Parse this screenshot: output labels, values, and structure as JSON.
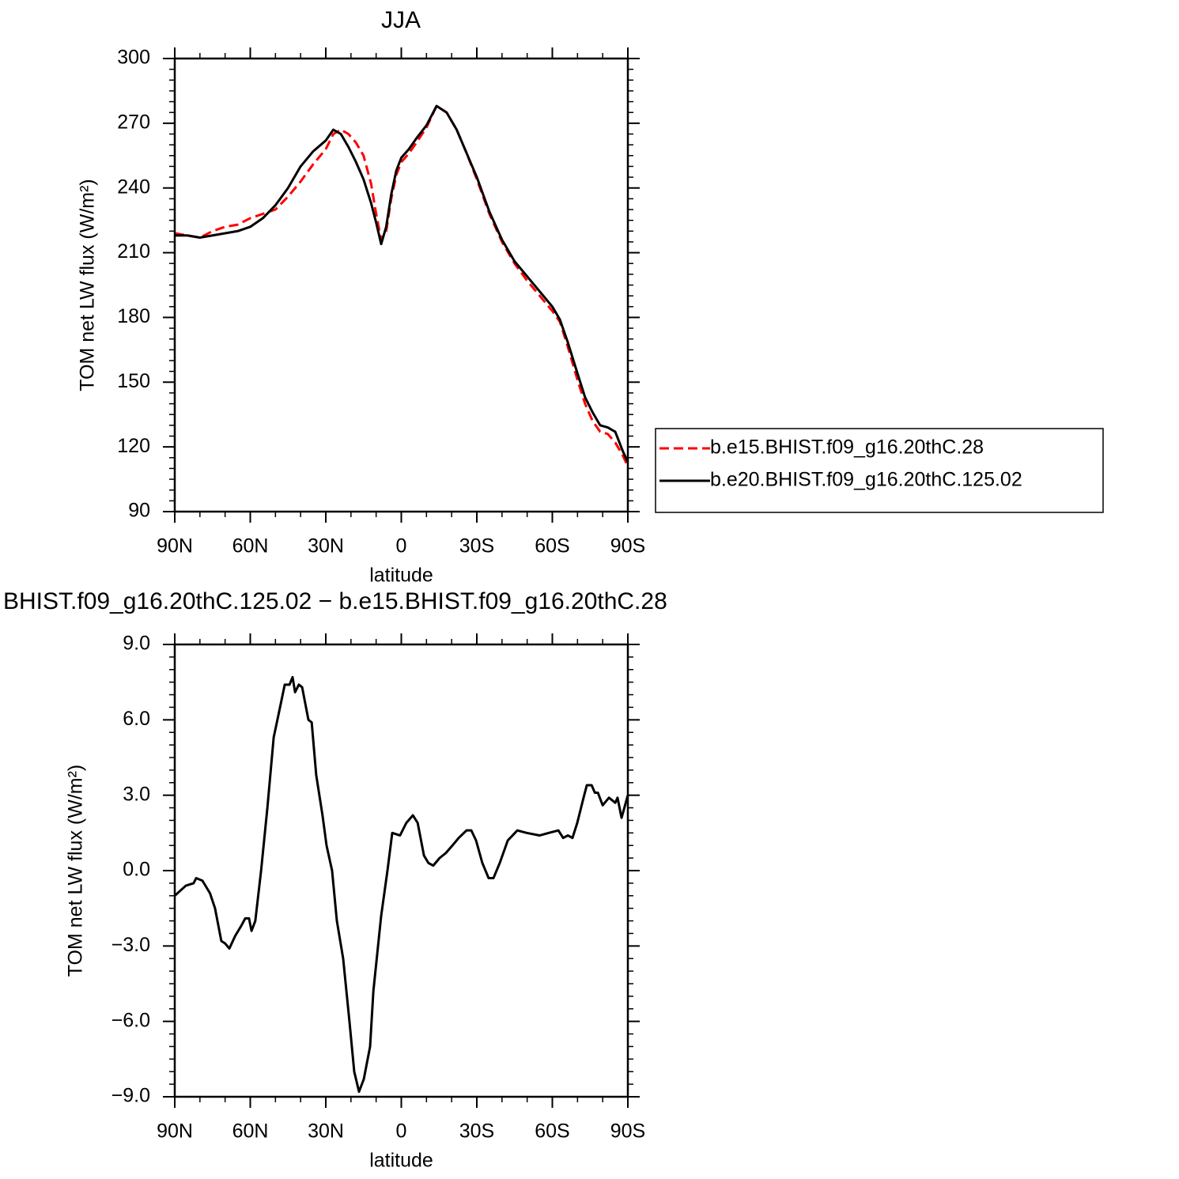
{
  "chart_data": [
    {
      "type": "line",
      "title": "JJA",
      "xlabel": "latitude",
      "ylabel": "TOM net LW flux (W/m²)",
      "x": [
        90,
        85,
        80,
        75,
        70,
        65,
        60,
        55,
        50,
        45,
        40,
        35,
        30,
        27,
        24,
        21,
        18,
        15,
        12,
        10,
        8,
        6,
        4,
        2,
        0,
        -3,
        -6,
        -10,
        -14,
        -18,
        -22,
        -26,
        -30,
        -35,
        -40,
        -45,
        -50,
        -55,
        -60,
        -63,
        -66,
        -70,
        -73,
        -76,
        -79,
        -82,
        -85,
        -88,
        -90
      ],
      "series": [
        {
          "name": "b.e15.BHIST.f09_g16.20thC.28",
          "color": "#ff0000",
          "style": "dashed",
          "values": [
            219,
            218,
            217,
            220,
            222,
            223,
            226,
            228,
            230,
            236,
            243,
            251,
            258,
            265,
            267,
            265,
            261,
            255,
            242,
            228,
            216,
            220,
            235,
            246,
            252,
            256,
            261,
            268,
            278,
            275,
            267,
            256,
            244,
            228,
            215,
            205,
            197,
            190,
            183,
            178,
            167,
            151,
            140,
            132,
            127,
            126,
            122,
            116,
            111
          ]
        },
        {
          "name": "b.e20.BHIST.f09_g16.20thC.125.02",
          "color": "#000000",
          "style": "solid",
          "values": [
            218,
            218,
            217,
            218,
            219,
            220,
            222,
            226,
            232,
            240,
            250,
            257,
            262,
            267,
            265,
            259,
            252,
            244,
            233,
            224,
            214,
            222,
            237,
            248,
            254,
            258,
            263,
            269,
            278,
            275,
            267,
            256,
            245,
            229,
            216,
            206,
            199,
            192,
            185,
            179,
            169,
            154,
            143,
            136,
            130,
            129,
            127,
            118,
            113
          ]
        }
      ],
      "xlim": [
        90,
        -90
      ],
      "xticks": [
        {
          "value": 90,
          "label": "90N"
        },
        {
          "value": 60,
          "label": "60N"
        },
        {
          "value": 30,
          "label": "30N"
        },
        0,
        {
          "value": -30,
          "label": "30S"
        },
        {
          "value": -60,
          "label": "60S"
        },
        {
          "value": -90,
          "label": "90S"
        }
      ],
      "ylim": [
        90,
        300
      ],
      "yticks": [
        90,
        120,
        150,
        180,
        210,
        240,
        270,
        300
      ],
      "legend": "right"
    },
    {
      "type": "line",
      "title": "BHIST.f09_g16.20thC.125.02 − b.e15.BHIST.f09_g16.20thC.28",
      "xlabel": "latitude",
      "ylabel": "TOM net LW flux (W/m²)",
      "x": [
        90,
        85.6,
        82.5,
        81.5,
        79,
        76,
        74,
        71.5,
        70,
        68.3,
        66,
        63.6,
        62,
        60.5,
        59.5,
        58,
        55.7,
        53.2,
        50.7,
        48.8,
        46.3,
        44.4,
        43.2,
        42.2,
        40.7,
        39.4,
        36.9,
        35.6,
        33.8,
        31.3,
        29.7,
        27.5,
        25.6,
        23.1,
        20.6,
        18.7,
        16.8,
        14.9,
        12.4,
        11.1,
        8,
        5.5,
        3.6,
        0.5,
        -2,
        -4.6,
        -6.5,
        -9,
        -10.8,
        -12.7,
        -15.2,
        -17.7,
        -20.3,
        -22.8,
        -25.9,
        -27.8,
        -29.7,
        -32.2,
        -34.7,
        -36.6,
        -39.1,
        -42.3,
        -46.1,
        -49.8,
        -54.9,
        -58.6,
        -62.4,
        -64.3,
        -66.2,
        -68,
        -69.9,
        -72.4,
        -73.7,
        -75.6,
        -76.9,
        -78.1,
        -80,
        -82.5,
        -85,
        -85.9,
        -87.5,
        -90
      ],
      "series": [
        {
          "color": "#000000",
          "style": "solid",
          "values": [
            -1.0,
            -0.6,
            -0.5,
            -0.3,
            -0.4,
            -0.9,
            -1.5,
            -2.8,
            -2.9,
            -3.1,
            -2.6,
            -2.2,
            -1.9,
            -1.9,
            -2.4,
            -2.0,
            0.0,
            2.5,
            5.3,
            6.2,
            7.4,
            7.4,
            7.7,
            7.1,
            7.4,
            7.3,
            6.0,
            5.9,
            3.8,
            2.2,
            1.0,
            0.0,
            -2.0,
            -3.5,
            -6.0,
            -8.0,
            -8.8,
            -8.3,
            -7.0,
            -4.8,
            -1.8,
            0.0,
            1.5,
            1.4,
            1.9,
            2.2,
            1.9,
            0.6,
            0.3,
            0.2,
            0.5,
            0.7,
            1.0,
            1.3,
            1.6,
            1.6,
            1.2,
            0.3,
            -0.3,
            -0.3,
            0.3,
            1.2,
            1.6,
            1.5,
            1.4,
            1.5,
            1.6,
            1.3,
            1.4,
            1.3,
            1.9,
            2.9,
            3.4,
            3.4,
            3.1,
            3.1,
            2.6,
            2.9,
            2.7,
            2.9,
            2.1,
            3.0
          ]
        }
      ],
      "xlim": [
        90,
        -90
      ],
      "xticks": [
        {
          "value": 90,
          "label": "90N"
        },
        {
          "value": 60,
          "label": "60N"
        },
        {
          "value": 30,
          "label": "30N"
        },
        0,
        {
          "value": -30,
          "label": "30S"
        },
        {
          "value": -60,
          "label": "60S"
        },
        {
          "value": -90,
          "label": "90S"
        }
      ],
      "ylim": [
        -9,
        9
      ],
      "yticks": [
        {
          "value": -9,
          "label": "−9.0"
        },
        {
          "value": -6,
          "label": "−6.0"
        },
        {
          "value": -3,
          "label": "−3.0"
        },
        {
          "value": 0,
          "label": "0.0"
        },
        {
          "value": 3,
          "label": "3.0"
        },
        {
          "value": 6,
          "label": "6.0"
        },
        {
          "value": 9,
          "label": "9.0"
        }
      ]
    }
  ]
}
